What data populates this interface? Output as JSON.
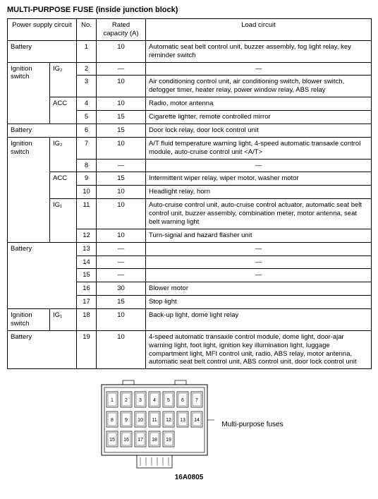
{
  "title": "MULTI-PURPOSE FUSE (inside junction block)",
  "headers": {
    "supply": "Power supply circuit",
    "no": "No.",
    "rated": "Rated capacity (A)",
    "load": "Load circuit"
  },
  "rows": [
    {
      "supply": [
        "Battery",
        ""
      ],
      "no": "1",
      "rated": "10",
      "load": "Automatic seat belt control unit, buzzer assembly, fog light relay, key reminder switch"
    },
    {
      "supply": [
        "Ignition switch",
        "IG₂"
      ],
      "no": "2",
      "rated": "—",
      "load": "—"
    },
    {
      "supply": [
        "",
        ""
      ],
      "no": "3",
      "rated": "10",
      "load": "Air conditioning control unit, air conditioning switch, blower switch, defogger timer, heater relay, power window relay, ABS relay"
    },
    {
      "supply": [
        "",
        "ACC"
      ],
      "no": "4",
      "rated": "10",
      "load": "Radio, motor antenna"
    },
    {
      "supply": [
        "",
        ""
      ],
      "no": "5",
      "rated": "15",
      "load": "Cigarette lighter, remote controlled mirror"
    },
    {
      "supply": [
        "Battery",
        ""
      ],
      "no": "6",
      "rated": "15",
      "load": "Door lock relay, door lock control unit"
    },
    {
      "supply": [
        "Ignition switch",
        "IG₂"
      ],
      "no": "7",
      "rated": "10",
      "load": "A/T fluid temperature warning light, 4-speed automatic transaxle control module, auto-cruise control unit <A/T>"
    },
    {
      "supply": [
        "",
        ""
      ],
      "no": "8",
      "rated": "—",
      "load": "—"
    },
    {
      "supply": [
        "",
        "ACC"
      ],
      "no": "9",
      "rated": "15",
      "load": "Intermittent wiper relay, wiper motor, washer motor"
    },
    {
      "supply": [
        "",
        ""
      ],
      "no": "10",
      "rated": "10",
      "load": "Headlight relay, horn"
    },
    {
      "supply": [
        "",
        "IG₁"
      ],
      "no": "11",
      "rated": "10",
      "load": "Auto-cruise control unit, auto-cruise control actuator, automatic seat belt control unit, buzzer assembly, combination meter, motor antenna, seat belt warning light"
    },
    {
      "supply": [
        "",
        ""
      ],
      "no": "12",
      "rated": "10",
      "load": "Turn-signal and hazard flasher unit"
    },
    {
      "supply": [
        "Battery",
        ""
      ],
      "no": "13",
      "rated": "—",
      "load": "—"
    },
    {
      "supply": [
        "",
        ""
      ],
      "no": "14",
      "rated": "—",
      "load": "—"
    },
    {
      "supply": [
        "",
        ""
      ],
      "no": "15",
      "rated": "—",
      "load": "—"
    },
    {
      "supply": [
        "",
        ""
      ],
      "no": "16",
      "rated": "30",
      "load": "Blower motor"
    },
    {
      "supply": [
        "",
        ""
      ],
      "no": "17",
      "rated": "15",
      "load": "Stop light"
    },
    {
      "supply": [
        "Ignition switch",
        "IG₁"
      ],
      "no": "18",
      "rated": "10",
      "load": "Back-up light, dome light relay"
    },
    {
      "supply": [
        "Battery",
        ""
      ],
      "no": "19",
      "rated": "10",
      "load": "4-speed automatic transaxle control module, dome light, door-ajar warning light, foot light, ignition key illumination light, luggage compartment light, MFI control unit, radio, ABS relay, motor antenna, automatic seat belt control unit, ABS control unit, door lock control unit"
    }
  ],
  "spans": {
    "col1": [
      {
        "start": 0,
        "rows": 1
      },
      {
        "start": 1,
        "rows": 4
      },
      {
        "start": 5,
        "rows": 1
      },
      {
        "start": 6,
        "rows": 6
      },
      {
        "start": 12,
        "rows": 5
      },
      {
        "start": 17,
        "rows": 1
      },
      {
        "start": 18,
        "rows": 1
      }
    ],
    "col2": [
      {
        "start": 0,
        "rows": 1,
        "merge": true
      },
      {
        "start": 1,
        "rows": 2
      },
      {
        "start": 3,
        "rows": 2
      },
      {
        "start": 5,
        "rows": 1,
        "merge": true
      },
      {
        "start": 6,
        "rows": 2
      },
      {
        "start": 8,
        "rows": 2
      },
      {
        "start": 10,
        "rows": 2
      },
      {
        "start": 12,
        "rows": 5,
        "merge": true
      },
      {
        "start": 17,
        "rows": 1
      },
      {
        "start": 18,
        "rows": 1,
        "merge": true
      }
    ]
  },
  "diagram": {
    "label": "Multi-purpose fuses",
    "figno": "16A0805",
    "fuse_count": 19
  },
  "colwidths": {
    "c1": 60,
    "c2": 38,
    "c3": 28,
    "c4": 70,
    "c5": 320
  }
}
